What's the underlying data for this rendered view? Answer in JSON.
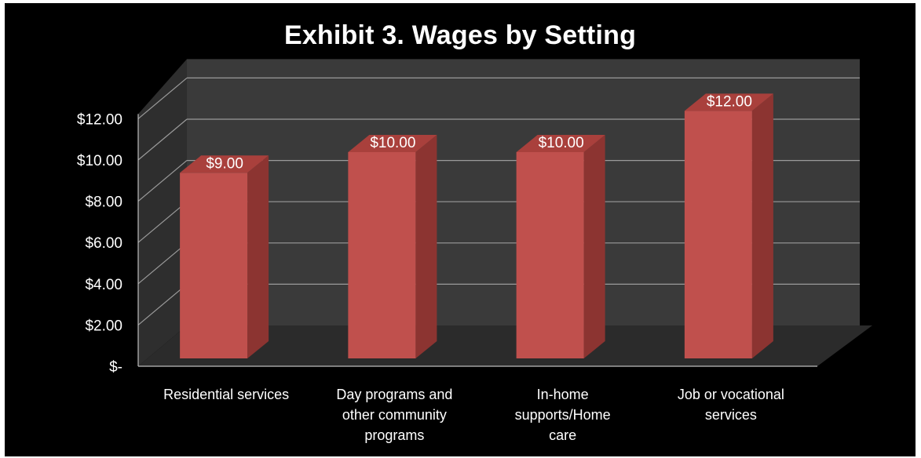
{
  "chart_data": {
    "type": "bar",
    "title": "Exhibit 3. Wages by Setting",
    "categories": [
      [
        "Residential services"
      ],
      [
        "Day programs and",
        "other community",
        "programs"
      ],
      [
        "In-home",
        "supports/Home",
        "care"
      ],
      [
        "Job or vocational",
        "services"
      ]
    ],
    "values": [
      9,
      10,
      10,
      12
    ],
    "value_labels": [
      "$9.00",
      "$10.00",
      "$10.00",
      "$12.00"
    ],
    "y_ticks": [
      "$-",
      "$2.00",
      "$4.00",
      "$6.00",
      "$8.00",
      "$10.00",
      "$12.00"
    ],
    "ylim": [
      0,
      12
    ],
    "xlabel": "",
    "ylabel": "",
    "grid": true,
    "style": "3d-column",
    "colors": {
      "background": "#000000",
      "wall": "#3a3a3a",
      "floor": "#2b2b2b",
      "gridline": "#9a9a9a",
      "bar_front": "#c0504d",
      "bar_side": "#8c3431",
      "bar_top": "#a9403c",
      "text": "#ffffff"
    }
  }
}
